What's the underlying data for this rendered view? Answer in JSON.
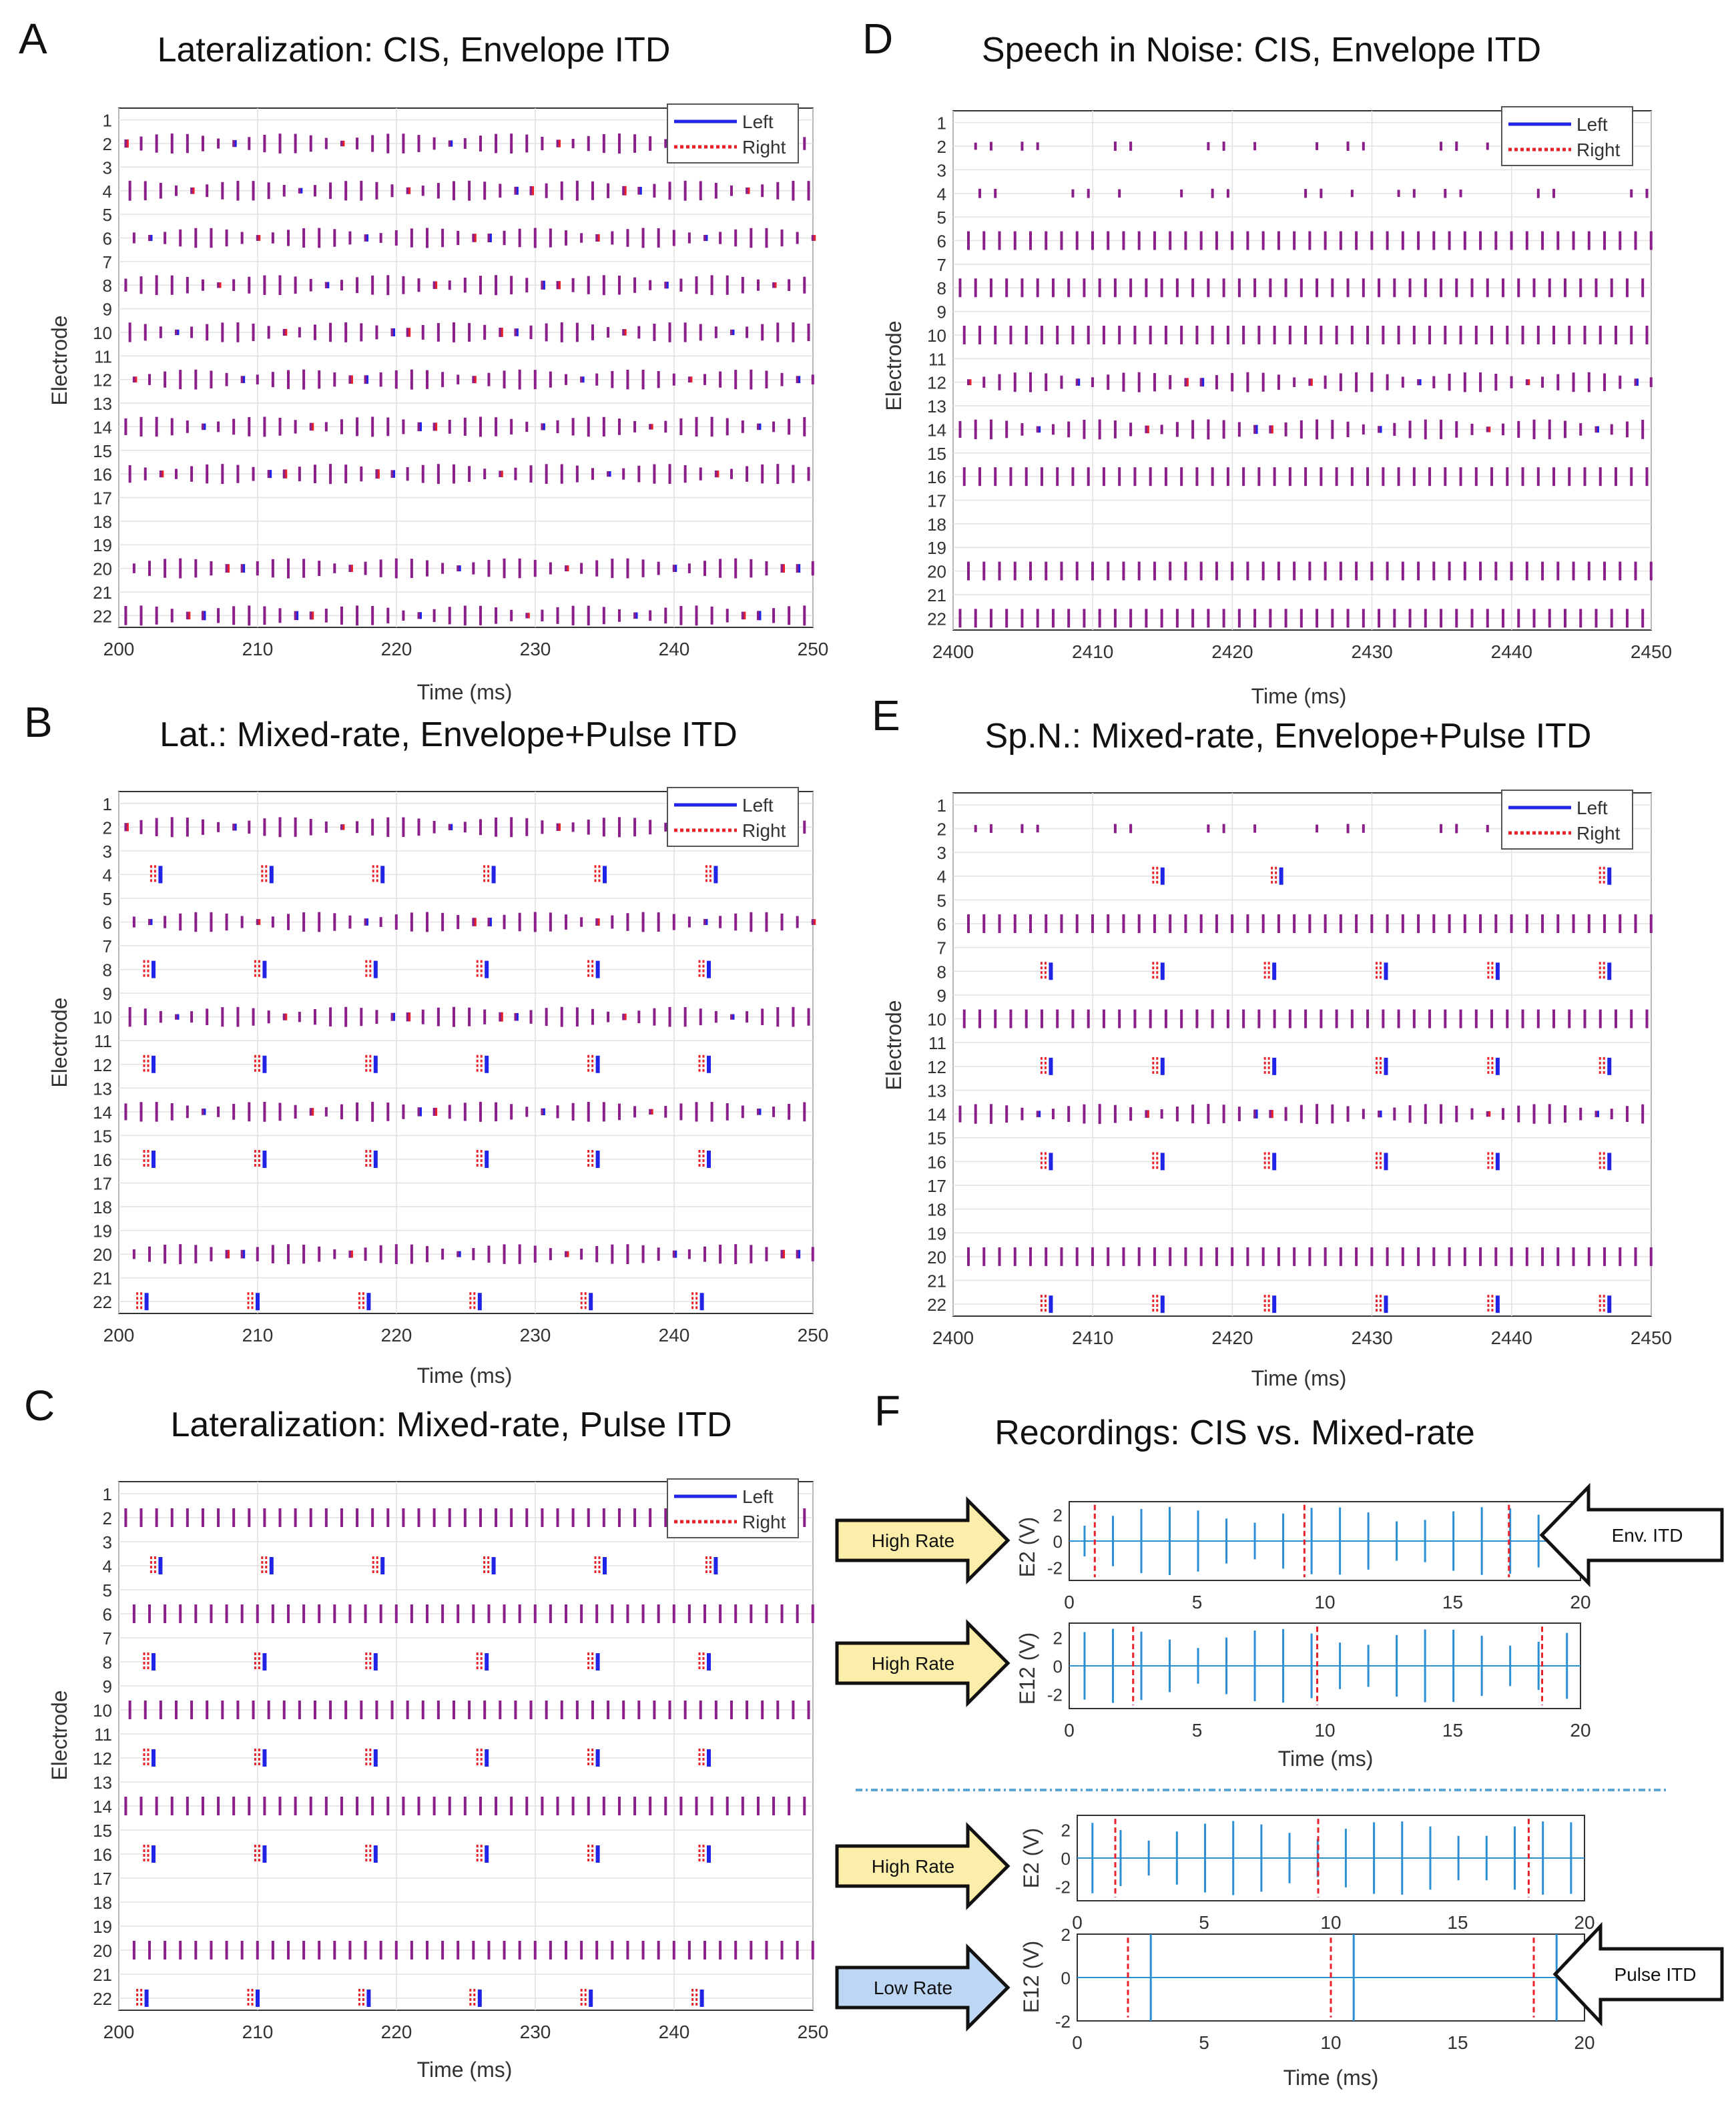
{
  "figure_letters": [
    "A",
    "B",
    "C",
    "D",
    "E",
    "F"
  ],
  "legend": {
    "left": "Left",
    "right": "Right"
  },
  "colors": {
    "left": "#1f24e6",
    "right": "#e8202a",
    "overlap": "#8a1f8a",
    "trace": "#2b8fd6",
    "highRateArrow": "#fbeeaa",
    "lowRateArrow": "#bcd6f3"
  },
  "arrows": {
    "high_rate": "High Rate",
    "low_rate": "Low Rate",
    "env_itd": "Env. ITD",
    "pulse_itd": "Pulse ITD"
  },
  "chart_data": [
    {
      "id": "A",
      "type": "raster",
      "title": "Lateralization: CIS, Envelope ITD",
      "xlabel": "Time (ms)",
      "ylabel": "Electrode",
      "xlim": [
        200,
        250
      ],
      "xticks": [
        200,
        210,
        220,
        230,
        240,
        250
      ],
      "ylim": [
        1,
        22
      ],
      "yticks": [
        1,
        2,
        3,
        4,
        5,
        6,
        7,
        8,
        9,
        10,
        11,
        12,
        13,
        14,
        15,
        16,
        17,
        18,
        19,
        20,
        21,
        22
      ],
      "series": [
        {
          "electrode": 2,
          "pattern": "cis",
          "rate_pps": 900
        },
        {
          "electrode": 4,
          "pattern": "cis",
          "rate_pps": 900
        },
        {
          "electrode": 6,
          "pattern": "cis",
          "rate_pps": 900
        },
        {
          "electrode": 8,
          "pattern": "cis",
          "rate_pps": 900
        },
        {
          "electrode": 10,
          "pattern": "cis",
          "rate_pps": 900
        },
        {
          "electrode": 12,
          "pattern": "cis",
          "rate_pps": 900
        },
        {
          "electrode": 14,
          "pattern": "cis",
          "rate_pps": 900
        },
        {
          "electrode": 16,
          "pattern": "cis",
          "rate_pps": 900
        },
        {
          "electrode": 20,
          "pattern": "cis",
          "rate_pps": 900
        },
        {
          "electrode": 22,
          "pattern": "cis",
          "rate_pps": 900
        }
      ],
      "legend": true
    },
    {
      "id": "B",
      "type": "raster",
      "title": "Lat.: Mixed-rate, Envelope+Pulse ITD",
      "xlabel": "Time (ms)",
      "ylabel": "Electrode",
      "xlim": [
        200,
        250
      ],
      "xticks": [
        200,
        210,
        220,
        230,
        240,
        250
      ],
      "ylim": [
        1,
        22
      ],
      "yticks": [
        1,
        2,
        3,
        4,
        5,
        6,
        7,
        8,
        9,
        10,
        11,
        12,
        13,
        14,
        15,
        16,
        17,
        18,
        19,
        20,
        21,
        22
      ],
      "series": [
        {
          "electrode": 2,
          "pattern": "cis",
          "rate_pps": 900
        },
        {
          "electrode": 4,
          "pattern": "low",
          "times_ms": [
            203,
            211,
            219,
            227,
            235,
            243
          ]
        },
        {
          "electrode": 6,
          "pattern": "cis",
          "rate_pps": 900
        },
        {
          "electrode": 8,
          "pattern": "low",
          "times_ms": [
            202.5,
            210.5,
            218.5,
            226.5,
            234.5,
            242.5
          ]
        },
        {
          "electrode": 10,
          "pattern": "cis",
          "rate_pps": 900
        },
        {
          "electrode": 12,
          "pattern": "low",
          "times_ms": [
            202.5,
            210.5,
            218.5,
            226.5,
            234.5,
            242.5
          ]
        },
        {
          "electrode": 14,
          "pattern": "cis",
          "rate_pps": 900
        },
        {
          "electrode": 16,
          "pattern": "low",
          "times_ms": [
            202.5,
            210.5,
            218.5,
            226.5,
            234.5,
            242.5
          ]
        },
        {
          "electrode": 20,
          "pattern": "cis",
          "rate_pps": 900
        },
        {
          "electrode": 22,
          "pattern": "low",
          "times_ms": [
            202,
            210,
            218,
            226,
            234,
            242
          ]
        }
      ],
      "legend": true
    },
    {
      "id": "C",
      "type": "raster",
      "title": "Lateralization: Mixed-rate, Pulse ITD",
      "xlabel": "Time (ms)",
      "ylabel": "Electrode",
      "xlim": [
        200,
        250
      ],
      "xticks": [
        200,
        210,
        220,
        230,
        240,
        250
      ],
      "ylim": [
        1,
        22
      ],
      "yticks": [
        1,
        2,
        3,
        4,
        5,
        6,
        7,
        8,
        9,
        10,
        11,
        12,
        13,
        14,
        15,
        16,
        17,
        18,
        19,
        20,
        21,
        22
      ],
      "series": [
        {
          "electrode": 2,
          "pattern": "dense",
          "rate_pps": 900
        },
        {
          "electrode": 4,
          "pattern": "low",
          "times_ms": [
            203,
            211,
            219,
            227,
            235,
            243
          ]
        },
        {
          "electrode": 6,
          "pattern": "dense",
          "rate_pps": 900
        },
        {
          "electrode": 8,
          "pattern": "low",
          "times_ms": [
            202.5,
            210.5,
            218.5,
            226.5,
            234.5,
            242.5
          ]
        },
        {
          "electrode": 10,
          "pattern": "dense",
          "rate_pps": 900
        },
        {
          "electrode": 12,
          "pattern": "low",
          "times_ms": [
            202.5,
            210.5,
            218.5,
            226.5,
            234.5,
            242.5
          ]
        },
        {
          "electrode": 14,
          "pattern": "dense",
          "rate_pps": 900
        },
        {
          "electrode": 16,
          "pattern": "low",
          "times_ms": [
            202.5,
            210.5,
            218.5,
            226.5,
            234.5,
            242.5
          ]
        },
        {
          "electrode": 20,
          "pattern": "dense",
          "rate_pps": 900
        },
        {
          "electrode": 22,
          "pattern": "low",
          "times_ms": [
            202,
            210,
            218,
            226,
            234,
            242
          ]
        }
      ],
      "legend": true
    },
    {
      "id": "D",
      "type": "raster",
      "title": "Speech in Noise: CIS, Envelope ITD",
      "xlabel": "Time (ms)",
      "ylabel": "Electrode",
      "xlim": [
        2400,
        2450
      ],
      "xticks": [
        2400,
        2410,
        2420,
        2430,
        2440,
        2450
      ],
      "ylim": [
        1,
        22
      ],
      "yticks": [
        1,
        2,
        3,
        4,
        5,
        6,
        7,
        8,
        9,
        10,
        11,
        12,
        13,
        14,
        15,
        16,
        17,
        18,
        19,
        20,
        21,
        22
      ],
      "series": [
        {
          "electrode": 2,
          "pattern": "sparse",
          "rate_pps": 900
        },
        {
          "electrode": 4,
          "pattern": "sparse",
          "rate_pps": 900
        },
        {
          "electrode": 6,
          "pattern": "dense",
          "rate_pps": 900
        },
        {
          "electrode": 8,
          "pattern": "dense",
          "rate_pps": 900
        },
        {
          "electrode": 10,
          "pattern": "dense",
          "rate_pps": 900
        },
        {
          "electrode": 12,
          "pattern": "cis",
          "rate_pps": 900
        },
        {
          "electrode": 14,
          "pattern": "cis",
          "rate_pps": 900
        },
        {
          "electrode": 16,
          "pattern": "dense",
          "rate_pps": 900
        },
        {
          "electrode": 20,
          "pattern": "dense",
          "rate_pps": 900
        },
        {
          "electrode": 22,
          "pattern": "dense",
          "rate_pps": 900
        }
      ],
      "legend": true
    },
    {
      "id": "E",
      "type": "raster",
      "title": "Sp.N.: Mixed-rate, Envelope+Pulse ITD",
      "xlabel": "Time (ms)",
      "ylabel": "Electrode",
      "xlim": [
        2400,
        2450
      ],
      "xticks": [
        2400,
        2410,
        2420,
        2430,
        2440,
        2450
      ],
      "ylim": [
        1,
        22
      ],
      "yticks": [
        1,
        2,
        3,
        4,
        5,
        6,
        7,
        8,
        9,
        10,
        11,
        12,
        13,
        14,
        15,
        16,
        17,
        18,
        19,
        20,
        21,
        22
      ],
      "series": [
        {
          "electrode": 2,
          "pattern": "sparse",
          "rate_pps": 900
        },
        {
          "electrode": 4,
          "pattern": "low",
          "times_ms": [
            2415,
            2423.5,
            2447
          ]
        },
        {
          "electrode": 6,
          "pattern": "dense",
          "rate_pps": 900
        },
        {
          "electrode": 8,
          "pattern": "low",
          "times_ms": [
            2407,
            2415,
            2423,
            2431,
            2439,
            2447
          ]
        },
        {
          "electrode": 10,
          "pattern": "dense",
          "rate_pps": 900
        },
        {
          "electrode": 12,
          "pattern": "low",
          "times_ms": [
            2407,
            2415,
            2423,
            2431,
            2439,
            2447
          ]
        },
        {
          "electrode": 14,
          "pattern": "cis",
          "rate_pps": 900
        },
        {
          "electrode": 16,
          "pattern": "low",
          "times_ms": [
            2407,
            2415,
            2423,
            2431,
            2439,
            2447
          ]
        },
        {
          "electrode": 20,
          "pattern": "dense",
          "rate_pps": 900
        },
        {
          "electrode": 22,
          "pattern": "low",
          "times_ms": [
            2407,
            2415,
            2423,
            2431,
            2439,
            2447
          ]
        }
      ],
      "legend": true
    },
    {
      "id": "F",
      "type": "line",
      "title": "Recordings: CIS vs. Mixed-rate",
      "subplots": [
        {
          "ylabel": "E2 (V)",
          "xlim": [
            0,
            20
          ],
          "ylim": [
            -3,
            3
          ],
          "xticks": [
            0,
            5,
            10,
            15,
            20
          ],
          "yticks": [
            2,
            0,
            -2
          ],
          "xlabel": "",
          "pulse_interval_ms": 1.11,
          "amplitude_V": 2.6,
          "stim_marker_times_ms": [
            1,
            9.2,
            17.2
          ]
        },
        {
          "ylabel": "E12 (V)",
          "xlim": [
            0,
            20
          ],
          "ylim": [
            -3,
            3
          ],
          "xticks": [
            0,
            5,
            10,
            15,
            20
          ],
          "yticks": [
            2,
            0,
            -2
          ],
          "xlabel": "Time (ms)",
          "pulse_interval_ms": 1.11,
          "amplitude_V": 2.6,
          "stim_marker_times_ms": [
            2.5,
            9.7,
            18.5
          ]
        },
        {
          "ylabel": "E2 (V)",
          "xlim": [
            0,
            20
          ],
          "ylim": [
            -3,
            3
          ],
          "xticks": [
            0,
            5,
            10,
            15,
            20
          ],
          "yticks": [
            2,
            0,
            -2
          ],
          "xlabel": "",
          "pulse_interval_ms": 1.11,
          "amplitude_V": 2.6,
          "stim_marker_times_ms": [
            1.5,
            9.5,
            17.8
          ]
        },
        {
          "ylabel": "E12 (V)",
          "xlim": [
            0,
            20
          ],
          "ylim": [
            -2,
            2
          ],
          "xticks": [
            0,
            5,
            10,
            15,
            20
          ],
          "yticks": [
            2,
            0,
            -2
          ],
          "xlabel": "Time (ms)",
          "pulse_times_ms": [
            2.9,
            10.9,
            18.9
          ],
          "stim_marker_times_ms": [
            2,
            10,
            18
          ],
          "amplitude_V": 2
        }
      ]
    }
  ]
}
